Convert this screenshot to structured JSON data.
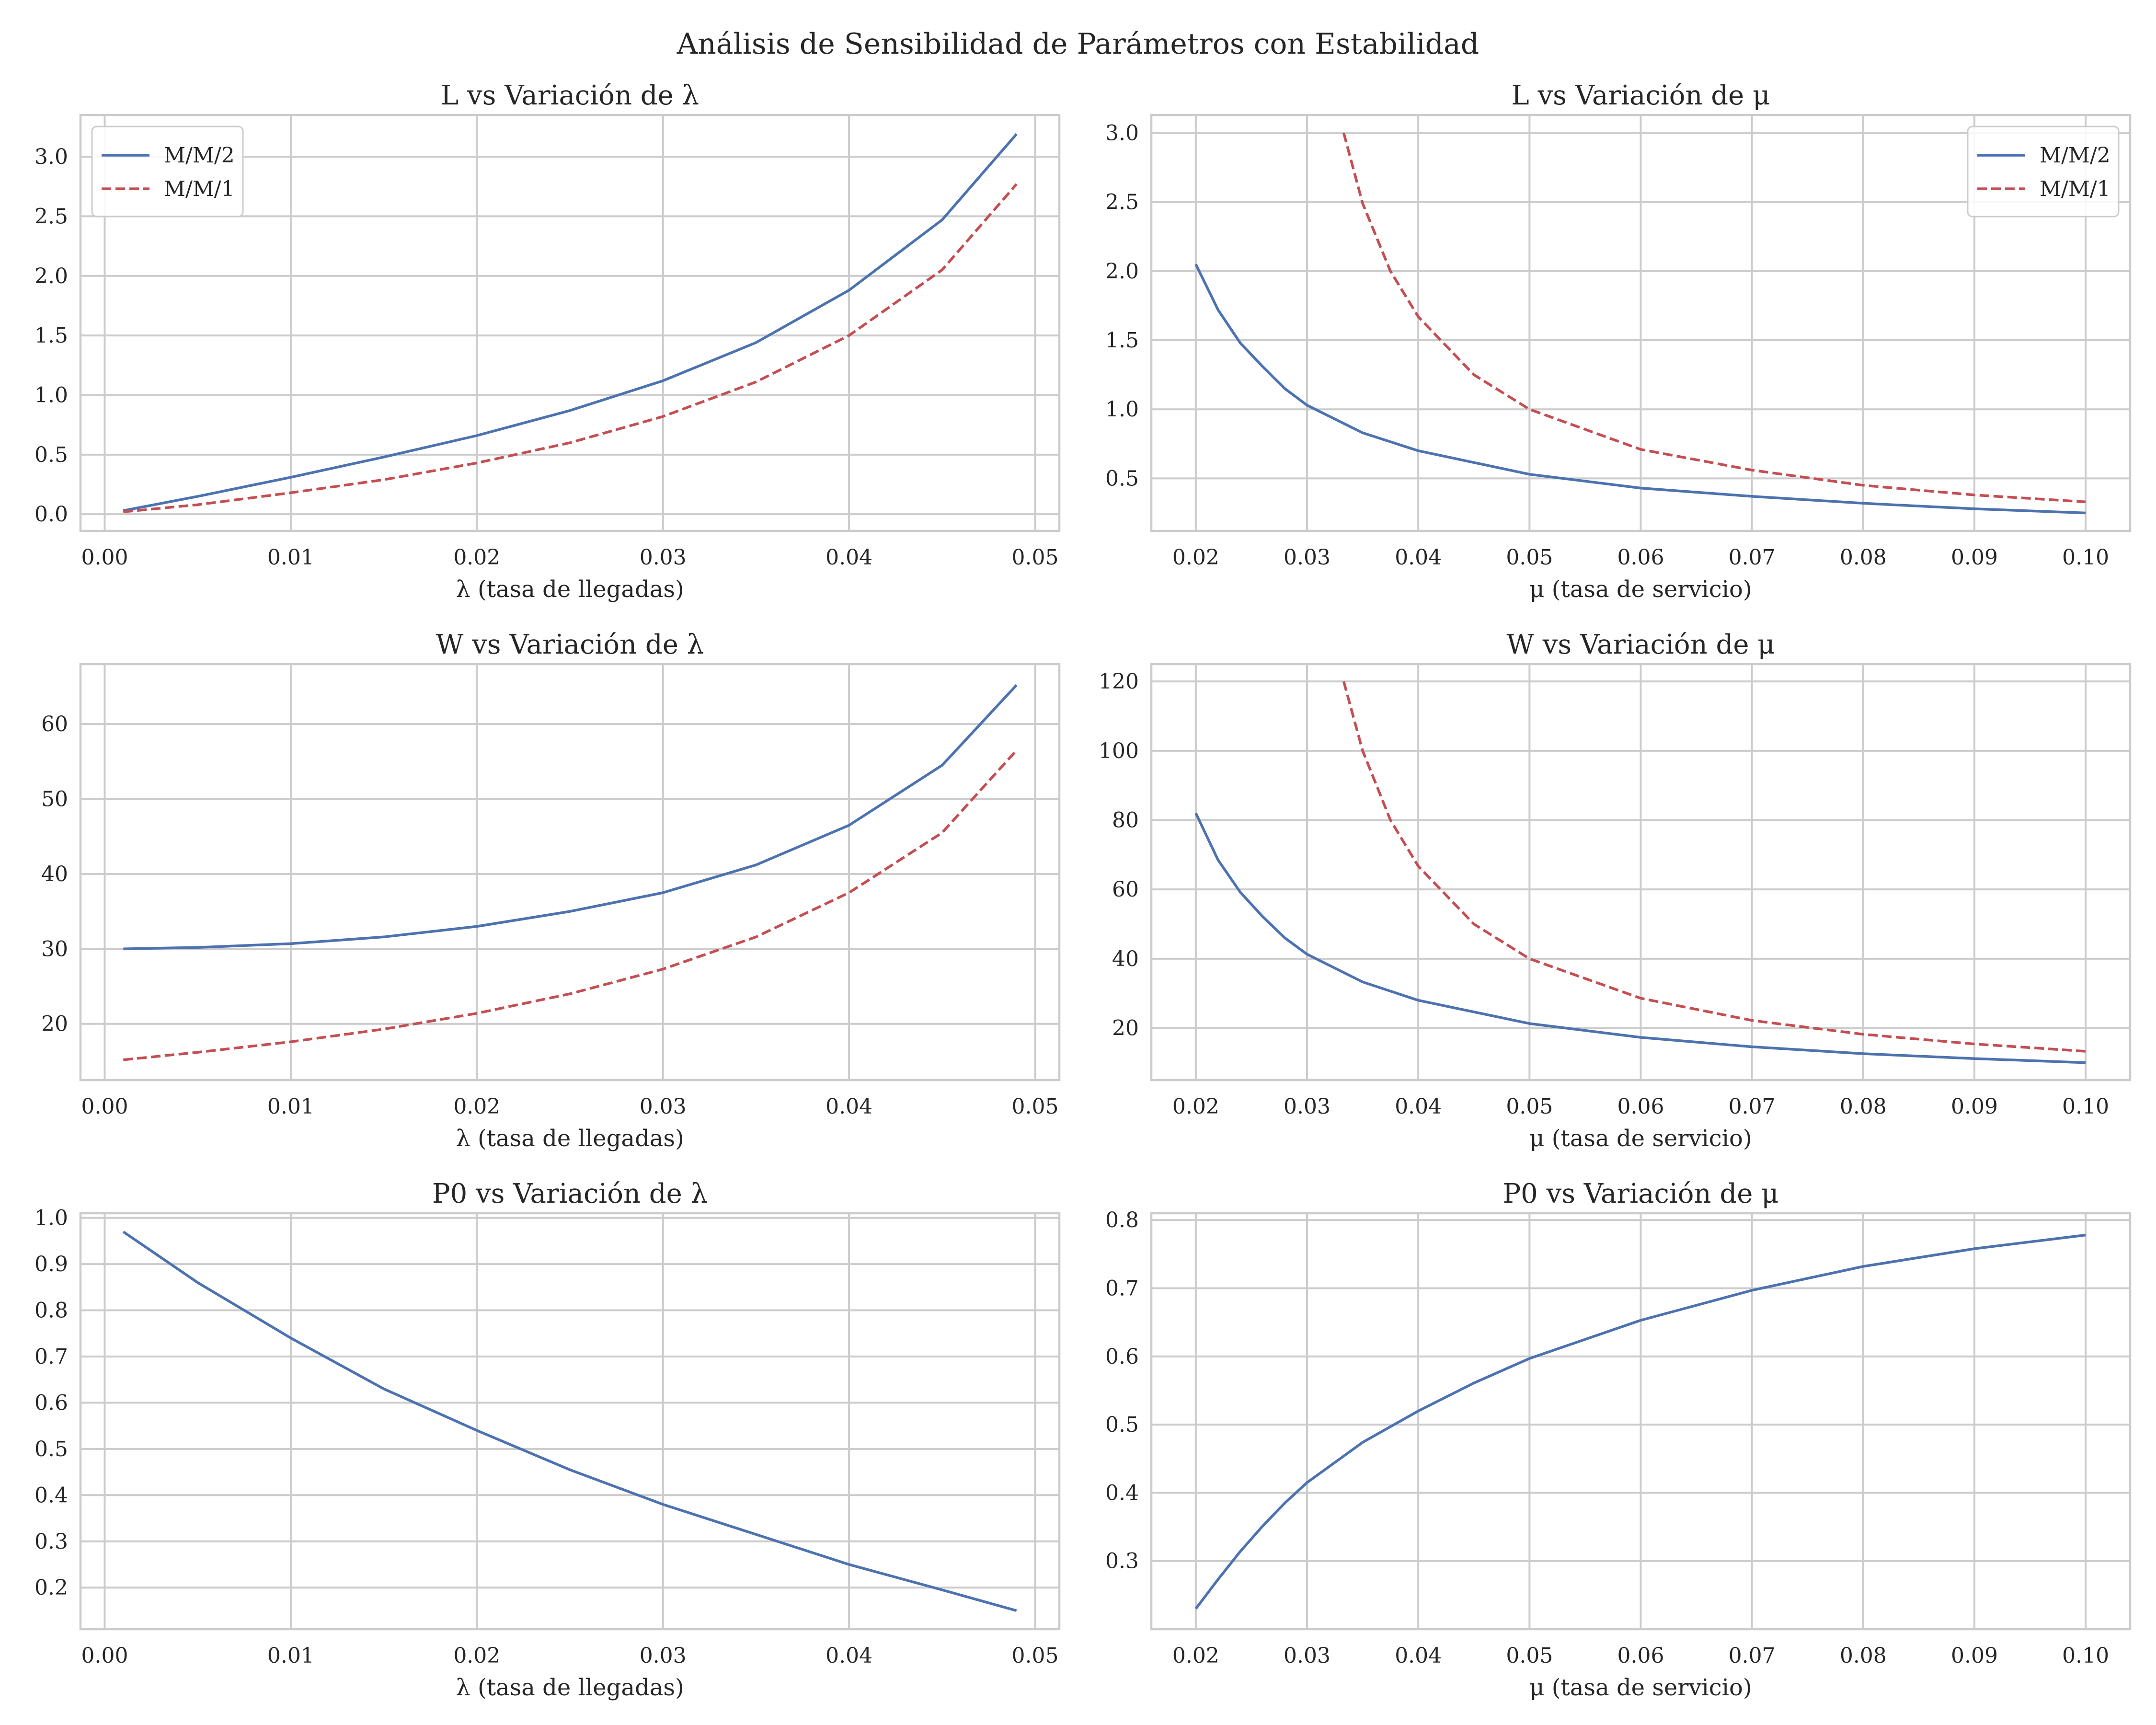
{
  "figure": {
    "suptitle": "Análisis de Sensibilidad de Parámetros con Estabilidad"
  },
  "colors": {
    "mm2": "#4c72b0",
    "mm1": "#c44e52",
    "grid": "#cccccc",
    "spine": "#cccccc",
    "text": "#262626"
  },
  "chart_data": [
    {
      "id": "L-lambda",
      "type": "line",
      "title": "L vs Variación de λ",
      "xlabel": "λ (tasa de llegadas)",
      "ylabel": "",
      "xlim": [
        -0.0013,
        0.0513
      ],
      "ylim": [
        -0.14,
        3.35
      ],
      "xticks": [
        0.0,
        0.01,
        0.02,
        0.03,
        0.04,
        0.05
      ],
      "xtick_labels": [
        "0.00",
        "0.01",
        "0.02",
        "0.03",
        "0.04",
        "0.05"
      ],
      "yticks": [
        0.0,
        0.5,
        1.0,
        1.5,
        2.0,
        2.5,
        3.0
      ],
      "ytick_labels": [
        "0.0",
        "0.5",
        "1.0",
        "1.5",
        "2.0",
        "2.5",
        "3.0"
      ],
      "grid": true,
      "legend": "top-left",
      "series": [
        {
          "name": "M/M/2",
          "color": "#4c72b0",
          "dash": "solid",
          "x": [
            0.001,
            0.005,
            0.01,
            0.015,
            0.02,
            0.025,
            0.03,
            0.035,
            0.04,
            0.045,
            0.049
          ],
          "y": [
            0.03,
            0.15,
            0.31,
            0.48,
            0.66,
            0.87,
            1.12,
            1.44,
            1.88,
            2.47,
            3.19
          ]
        },
        {
          "name": "M/M/1",
          "color": "#c44e52",
          "dash": "dashed",
          "x": [
            0.001,
            0.005,
            0.01,
            0.015,
            0.02,
            0.025,
            0.03,
            0.035,
            0.04,
            0.045,
            0.049
          ],
          "y": [
            0.02,
            0.08,
            0.18,
            0.29,
            0.43,
            0.6,
            0.82,
            1.11,
            1.5,
            2.05,
            2.77
          ]
        }
      ]
    },
    {
      "id": "L-mu",
      "type": "line",
      "title": "L vs Variación de μ",
      "xlabel": "μ (tasa de servicio)",
      "ylabel": "",
      "xlim": [
        0.016,
        0.104
      ],
      "ylim": [
        0.12,
        3.13
      ],
      "xticks": [
        0.02,
        0.03,
        0.04,
        0.05,
        0.06,
        0.07,
        0.08,
        0.09,
        0.1
      ],
      "xtick_labels": [
        "0.02",
        "0.03",
        "0.04",
        "0.05",
        "0.06",
        "0.07",
        "0.08",
        "0.09",
        "0.10"
      ],
      "yticks": [
        0.5,
        1.0,
        1.5,
        2.0,
        2.5,
        3.0
      ],
      "ytick_labels": [
        "0.5",
        "1.0",
        "1.5",
        "2.0",
        "2.5",
        "3.0"
      ],
      "grid": true,
      "legend": "top-right",
      "series": [
        {
          "name": "M/M/2",
          "color": "#4c72b0",
          "dash": "solid",
          "x": [
            0.02,
            0.022,
            0.024,
            0.026,
            0.028,
            0.03,
            0.035,
            0.04,
            0.05,
            0.06,
            0.07,
            0.08,
            0.09,
            0.1
          ],
          "y": [
            2.05,
            1.72,
            1.48,
            1.31,
            1.15,
            1.03,
            0.83,
            0.7,
            0.53,
            0.43,
            0.37,
            0.32,
            0.28,
            0.25
          ]
        },
        {
          "name": "M/M/1",
          "color": "#c44e52",
          "dash": "dashed",
          "x": [
            0.0333,
            0.035,
            0.0375,
            0.04,
            0.045,
            0.05,
            0.06,
            0.07,
            0.08,
            0.09,
            0.1
          ],
          "y": [
            3.0,
            2.49,
            2.0,
            1.67,
            1.25,
            1.0,
            0.71,
            0.56,
            0.45,
            0.38,
            0.33
          ]
        }
      ]
    },
    {
      "id": "W-lambda",
      "type": "line",
      "title": "W vs Variación de λ",
      "xlabel": "λ (tasa de llegadas)",
      "ylabel": "",
      "xlim": [
        -0.0013,
        0.0513
      ],
      "ylim": [
        12.5,
        68
      ],
      "xticks": [
        0.0,
        0.01,
        0.02,
        0.03,
        0.04,
        0.05
      ],
      "xtick_labels": [
        "0.00",
        "0.01",
        "0.02",
        "0.03",
        "0.04",
        "0.05"
      ],
      "yticks": [
        20,
        30,
        40,
        50,
        60
      ],
      "ytick_labels": [
        "20",
        "30",
        "40",
        "50",
        "60"
      ],
      "grid": true,
      "legend": "none",
      "series": [
        {
          "name": "M/M/2",
          "color": "#4c72b0",
          "dash": "solid",
          "x": [
            0.001,
            0.005,
            0.01,
            0.015,
            0.02,
            0.025,
            0.03,
            0.035,
            0.04,
            0.045,
            0.049
          ],
          "y": [
            30.0,
            30.2,
            30.7,
            31.6,
            33.0,
            35.0,
            37.5,
            41.2,
            46.5,
            54.5,
            65.2
          ]
        },
        {
          "name": "M/M/1",
          "color": "#c44e52",
          "dash": "dashed",
          "x": [
            0.001,
            0.005,
            0.01,
            0.015,
            0.02,
            0.025,
            0.03,
            0.035,
            0.04,
            0.045,
            0.049
          ],
          "y": [
            15.2,
            16.2,
            17.6,
            19.3,
            21.4,
            24.0,
            27.3,
            31.6,
            37.5,
            45.5,
            56.5
          ]
        }
      ]
    },
    {
      "id": "W-mu",
      "type": "line",
      "title": "W vs Variación de μ",
      "xlabel": "μ (tasa de servicio)",
      "ylabel": "",
      "xlim": [
        0.016,
        0.104
      ],
      "ylim": [
        5,
        125
      ],
      "xticks": [
        0.02,
        0.03,
        0.04,
        0.05,
        0.06,
        0.07,
        0.08,
        0.09,
        0.1
      ],
      "xtick_labels": [
        "0.02",
        "0.03",
        "0.04",
        "0.05",
        "0.06",
        "0.07",
        "0.08",
        "0.09",
        "0.10"
      ],
      "yticks": [
        20,
        40,
        60,
        80,
        100,
        120
      ],
      "ytick_labels": [
        "20",
        "40",
        "60",
        "80",
        "100",
        "120"
      ],
      "grid": true,
      "legend": "none",
      "series": [
        {
          "name": "M/M/2",
          "color": "#4c72b0",
          "dash": "solid",
          "x": [
            0.02,
            0.022,
            0.024,
            0.026,
            0.028,
            0.03,
            0.035,
            0.04,
            0.05,
            0.06,
            0.07,
            0.08,
            0.09,
            0.1
          ],
          "y": [
            82,
            68.5,
            59.2,
            52.2,
            46.0,
            41.3,
            33.3,
            28.0,
            21.3,
            17.3,
            14.6,
            12.6,
            11.2,
            10.0
          ]
        },
        {
          "name": "M/M/1",
          "color": "#c44e52",
          "dash": "dashed",
          "x": [
            0.0333,
            0.035,
            0.0375,
            0.04,
            0.045,
            0.05,
            0.06,
            0.07,
            0.08,
            0.09,
            0.1
          ],
          "y": [
            120,
            100,
            80,
            66.7,
            50,
            40,
            28.6,
            22.2,
            18.2,
            15.4,
            13.3
          ]
        }
      ]
    },
    {
      "id": "P0-lambda",
      "type": "line",
      "title": "P0 vs Variación de λ",
      "xlabel": "λ (tasa de llegadas)",
      "ylabel": "",
      "xlim": [
        -0.0013,
        0.0513
      ],
      "ylim": [
        0.11,
        1.01
      ],
      "xticks": [
        0.0,
        0.01,
        0.02,
        0.03,
        0.04,
        0.05
      ],
      "xtick_labels": [
        "0.00",
        "0.01",
        "0.02",
        "0.03",
        "0.04",
        "0.05"
      ],
      "yticks": [
        0.2,
        0.3,
        0.4,
        0.5,
        0.6,
        0.7,
        0.8,
        0.9,
        1.0
      ],
      "ytick_labels": [
        "0.2",
        "0.3",
        "0.4",
        "0.5",
        "0.6",
        "0.7",
        "0.8",
        "0.9",
        "1.0"
      ],
      "grid": true,
      "legend": "none",
      "series": [
        {
          "name": "M/M/2",
          "color": "#4c72b0",
          "dash": "solid",
          "x": [
            0.001,
            0.005,
            0.01,
            0.015,
            0.02,
            0.025,
            0.03,
            0.035,
            0.04,
            0.045,
            0.049
          ],
          "y": [
            0.97,
            0.86,
            0.74,
            0.63,
            0.54,
            0.455,
            0.38,
            0.315,
            0.25,
            0.195,
            0.15
          ]
        }
      ]
    },
    {
      "id": "P0-mu",
      "type": "line",
      "title": "P0 vs Variación de μ",
      "xlabel": "μ (tasa de servicio)",
      "ylabel": "",
      "xlim": [
        0.016,
        0.104
      ],
      "ylim": [
        0.2,
        0.81
      ],
      "xticks": [
        0.02,
        0.03,
        0.04,
        0.05,
        0.06,
        0.07,
        0.08,
        0.09,
        0.1
      ],
      "xtick_labels": [
        "0.02",
        "0.03",
        "0.04",
        "0.05",
        "0.06",
        "0.07",
        "0.08",
        "0.09",
        "0.10"
      ],
      "yticks": [
        0.3,
        0.4,
        0.5,
        0.6,
        0.7,
        0.8
      ],
      "ytick_labels": [
        "0.3",
        "0.4",
        "0.5",
        "0.6",
        "0.7",
        "0.8"
      ],
      "grid": true,
      "legend": "none",
      "series": [
        {
          "name": "M/M/2",
          "color": "#4c72b0",
          "dash": "solid",
          "x": [
            0.02,
            0.022,
            0.024,
            0.026,
            0.028,
            0.03,
            0.035,
            0.04,
            0.045,
            0.05,
            0.06,
            0.07,
            0.08,
            0.09,
            0.1
          ],
          "y": [
            0.23,
            0.273,
            0.314,
            0.351,
            0.385,
            0.415,
            0.474,
            0.52,
            0.561,
            0.597,
            0.653,
            0.697,
            0.732,
            0.758,
            0.778
          ]
        }
      ]
    }
  ]
}
